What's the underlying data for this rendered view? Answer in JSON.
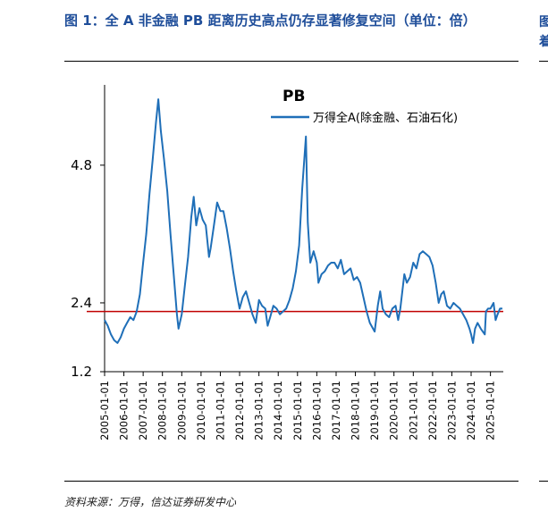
{
  "title": "图 1：全 A 非金融 PB 距离历史高点仍存显著修复空间（单位：倍）",
  "source": "资料来源：万得，信达证券研发中心",
  "edge_fragment": "图",
  "edge_fragment2": "着",
  "colors": {
    "series": "#1f6fb8",
    "reference": "#c00000",
    "title": "#1f4e9a"
  },
  "chart_data": {
    "type": "line",
    "title": "",
    "legend_title": "PB",
    "legend_placement": "top-right",
    "xlabel": "",
    "ylabel": "",
    "ylim": [
      1.2,
      6.2
    ],
    "yticks": [
      "1.2",
      "2.4",
      "4.8"
    ],
    "ytick_values": [
      1.2,
      2.4,
      4.8
    ],
    "xlim": [
      "2005-01-01",
      "2025-09-01"
    ],
    "xticks": [
      "2005-01-01",
      "2006-01-01",
      "2007-01-01",
      "2008-01-01",
      "2009-01-01",
      "2010-01-01",
      "2011-01-01",
      "2012-01-01",
      "2013-01-01",
      "2014-01-01",
      "2015-01-01",
      "2016-01-01",
      "2017-01-01",
      "2018-01-01",
      "2019-01-01",
      "2020-01-01",
      "2021-01-01",
      "2022-01-01",
      "2023-01-01",
      "2024-01-01",
      "2025-01-01"
    ],
    "reference_line": {
      "y": 2.25
    },
    "grid": false,
    "series": [
      {
        "name": "万得全A(除金融、石油石化)",
        "x": [
          "2005-01-01",
          "2005-03-01",
          "2005-05-01",
          "2005-07-01",
          "2005-09-01",
          "2005-11-01",
          "2006-01-01",
          "2006-03-01",
          "2006-05-01",
          "2006-07-01",
          "2006-09-01",
          "2006-11-01",
          "2007-01-01",
          "2007-03-01",
          "2007-05-01",
          "2007-07-01",
          "2007-09-01",
          "2007-10-15",
          "2007-12-01",
          "2008-02-01",
          "2008-04-01",
          "2008-06-01",
          "2008-08-01",
          "2008-10-01",
          "2008-11-01",
          "2009-01-01",
          "2009-03-01",
          "2009-05-01",
          "2009-07-01",
          "2009-08-15",
          "2009-10-01",
          "2009-12-01",
          "2010-02-01",
          "2010-04-01",
          "2010-06-01",
          "2010-07-01",
          "2010-09-01",
          "2010-11-01",
          "2011-01-01",
          "2011-03-01",
          "2011-05-01",
          "2011-07-01",
          "2011-09-01",
          "2011-11-01",
          "2012-01-01",
          "2012-03-01",
          "2012-05-01",
          "2012-07-01",
          "2012-09-01",
          "2012-11-01",
          "2013-01-01",
          "2013-03-01",
          "2013-05-01",
          "2013-06-15",
          "2013-08-01",
          "2013-10-01",
          "2013-12-01",
          "2014-02-01",
          "2014-04-01",
          "2014-06-01",
          "2014-08-01",
          "2014-10-01",
          "2014-12-01",
          "2015-02-01",
          "2015-04-01",
          "2015-06-10",
          "2015-07-15",
          "2015-09-01",
          "2015-11-01",
          "2016-01-01",
          "2016-02-01",
          "2016-04-01",
          "2016-06-01",
          "2016-08-01",
          "2016-10-01",
          "2016-12-01",
          "2017-02-01",
          "2017-04-01",
          "2017-06-01",
          "2017-08-01",
          "2017-10-01",
          "2017-12-01",
          "2018-02-01",
          "2018-04-01",
          "2018-06-01",
          "2018-08-01",
          "2018-10-01",
          "2018-12-01",
          "2019-01-01",
          "2019-03-01",
          "2019-04-15",
          "2019-06-01",
          "2019-08-01",
          "2019-10-01",
          "2019-12-01",
          "2020-02-01",
          "2020-03-20",
          "2020-05-01",
          "2020-07-15",
          "2020-09-01",
          "2020-11-01",
          "2021-01-01",
          "2021-03-01",
          "2021-05-01",
          "2021-07-01",
          "2021-09-01",
          "2021-11-01",
          "2022-01-01",
          "2022-03-01",
          "2022-04-26",
          "2022-06-15",
          "2022-08-01",
          "2022-10-01",
          "2022-12-01",
          "2023-02-01",
          "2023-04-01",
          "2023-06-01",
          "2023-08-01",
          "2023-10-01",
          "2023-12-01",
          "2024-01-01",
          "2024-02-05",
          "2024-03-15",
          "2024-05-01",
          "2024-07-01",
          "2024-09-15",
          "2024-10-08",
          "2024-11-15",
          "2025-01-01",
          "2025-03-01",
          "2025-04-08",
          "2025-05-15",
          "2025-07-01",
          "2025-08-15"
        ],
        "values": [
          2.1,
          2.0,
          1.85,
          1.75,
          1.7,
          1.8,
          1.95,
          2.05,
          2.15,
          2.1,
          2.25,
          2.55,
          3.1,
          3.6,
          4.3,
          4.9,
          5.55,
          5.95,
          5.4,
          4.9,
          4.35,
          3.6,
          2.9,
          2.2,
          1.95,
          2.2,
          2.7,
          3.2,
          3.9,
          4.25,
          3.75,
          4.05,
          3.85,
          3.75,
          3.2,
          3.35,
          3.75,
          4.15,
          4.0,
          4.0,
          3.7,
          3.35,
          2.95,
          2.6,
          2.3,
          2.5,
          2.6,
          2.4,
          2.2,
          2.05,
          2.45,
          2.35,
          2.3,
          2.0,
          2.15,
          2.35,
          2.3,
          2.2,
          2.25,
          2.3,
          2.45,
          2.65,
          2.95,
          3.4,
          4.4,
          5.3,
          3.8,
          3.1,
          3.3,
          3.1,
          2.75,
          2.9,
          2.95,
          3.05,
          3.1,
          3.1,
          3.0,
          3.15,
          2.9,
          2.95,
          3.0,
          2.8,
          2.85,
          2.75,
          2.5,
          2.25,
          2.05,
          1.95,
          1.9,
          2.35,
          2.6,
          2.3,
          2.2,
          2.15,
          2.3,
          2.35,
          2.1,
          2.3,
          2.9,
          2.75,
          2.85,
          3.1,
          3.0,
          3.25,
          3.3,
          3.25,
          3.2,
          3.05,
          2.75,
          2.4,
          2.55,
          2.6,
          2.35,
          2.3,
          2.4,
          2.35,
          2.3,
          2.2,
          2.1,
          1.95,
          1.85,
          1.7,
          1.95,
          2.05,
          1.95,
          1.85,
          2.25,
          2.3,
          2.3,
          2.4,
          2.1,
          2.2,
          2.3,
          2.3
        ]
      }
    ]
  }
}
